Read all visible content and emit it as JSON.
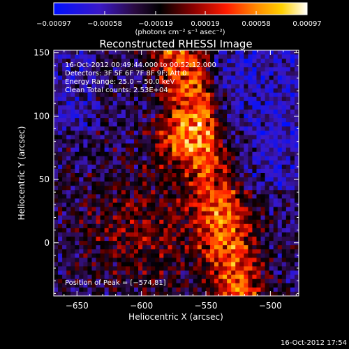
{
  "chart_data": {
    "type": "heatmap",
    "title": "Reconstructed RHESSI Image",
    "xlabel": "Heliocentric X (arcsec)",
    "ylabel": "Heliocentric Y (arcsec)",
    "xlim": [
      -668,
      -478
    ],
    "ylim": [
      -42,
      152
    ],
    "xticks": [
      -650,
      -600,
      -550,
      -500
    ],
    "yticks": [
      0,
      50,
      100,
      150
    ],
    "x_tick_labels": [
      "−650",
      "−600",
      "−550",
      "−500"
    ],
    "y_tick_labels": [
      "0",
      "50",
      "100",
      "150"
    ],
    "colorbar": {
      "min": -0.00097,
      "max": 0.00097,
      "ticks": [
        -0.00097,
        -0.00058,
        -0.00019,
        0.00019,
        0.00058,
        0.00097
      ],
      "tick_labels": [
        "−0.00097",
        "−0.00058",
        "−0.00019",
        "0.00019",
        "0.00058",
        "0.00097"
      ],
      "unit_label": "(photons cm⁻² s⁻¹ asec⁻²)",
      "colors": [
        "#0000ff",
        "#5500aa",
        "#000000",
        "#8b0000",
        "#ff0000",
        "#ff8c00",
        "#ffd700",
        "#ffffff"
      ]
    },
    "info_lines": [
      "16-Oct-2012 00:49:44.000 to 00:52:12.000",
      "Detectors: 3F 5F 6F 7F 8F 9F; Att 0",
      "Energy Range: 25.0 − 50.0 keV",
      "Clean     Total counts: 2.53E+04"
    ],
    "peak_annotation": "Position of Peak = [−574,81]",
    "peak_position": [
      -574,
      81
    ],
    "footer_timestamp": "16-Oct-2012 17:54"
  }
}
